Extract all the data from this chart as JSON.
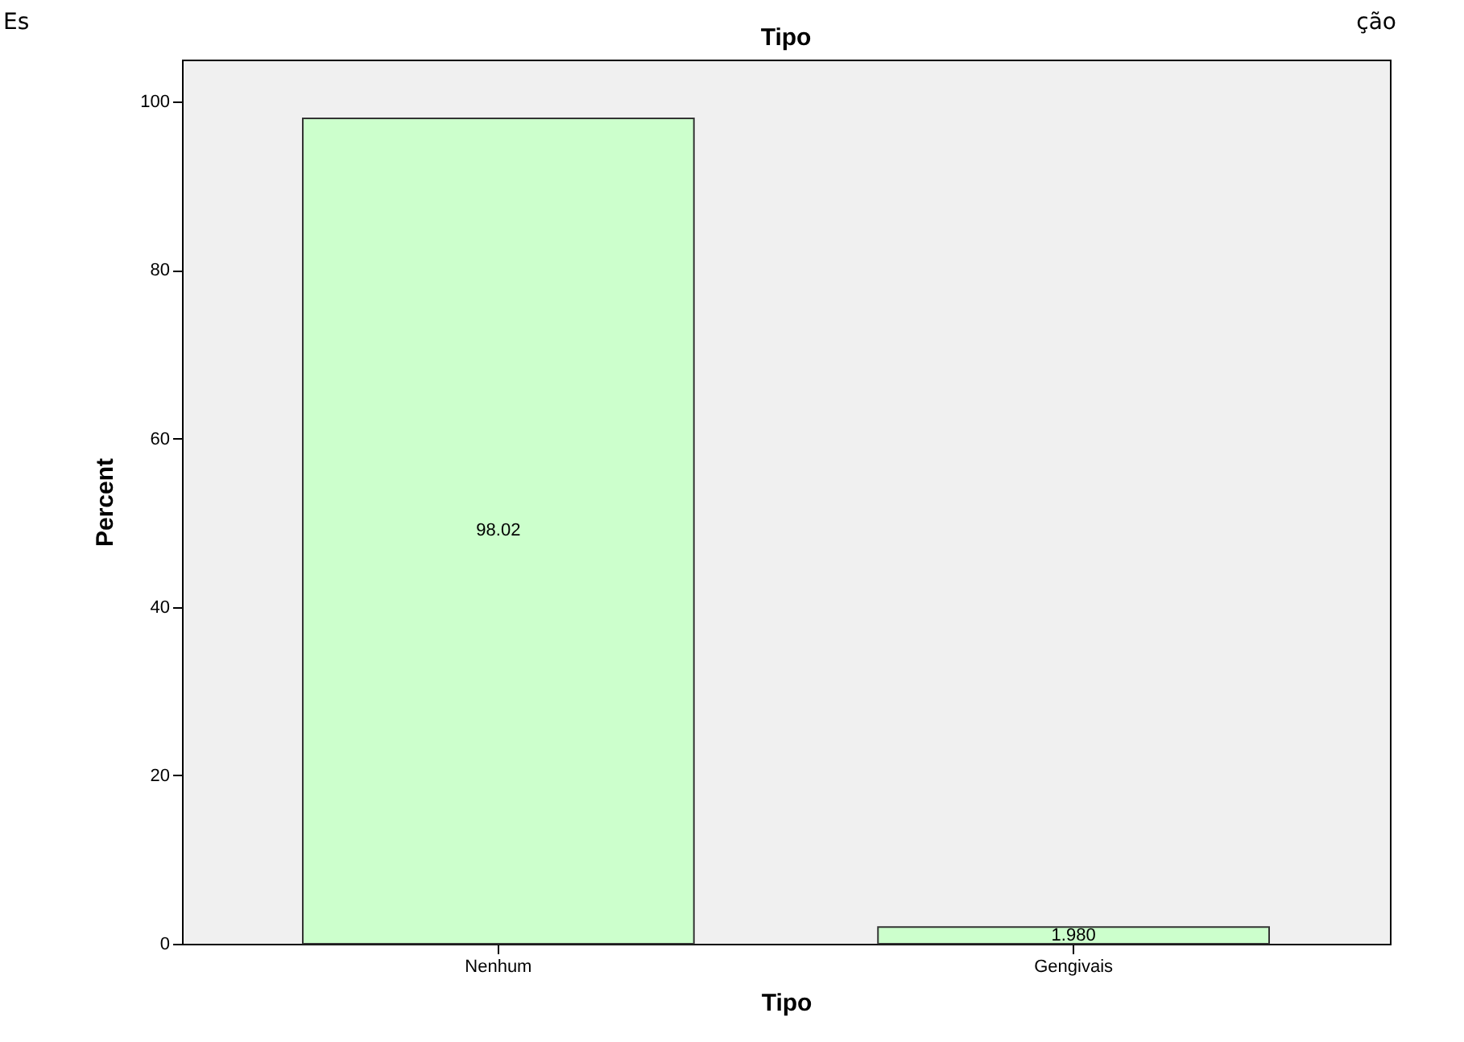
{
  "chart_data": {
    "type": "bar",
    "title": "Tipo",
    "xlabel": "Tipo",
    "ylabel": "Percent",
    "categories": [
      "Nenhum",
      "Gengivais"
    ],
    "values": [
      98.02,
      1.98
    ],
    "value_labels": [
      "98.02",
      "1.980"
    ],
    "color": "#ccffcc",
    "ylim": [
      0,
      105
    ],
    "yticks": [
      0,
      20,
      40,
      60,
      80,
      100
    ],
    "grid": false,
    "annotations": [
      "Es",
      "ção"
    ]
  }
}
